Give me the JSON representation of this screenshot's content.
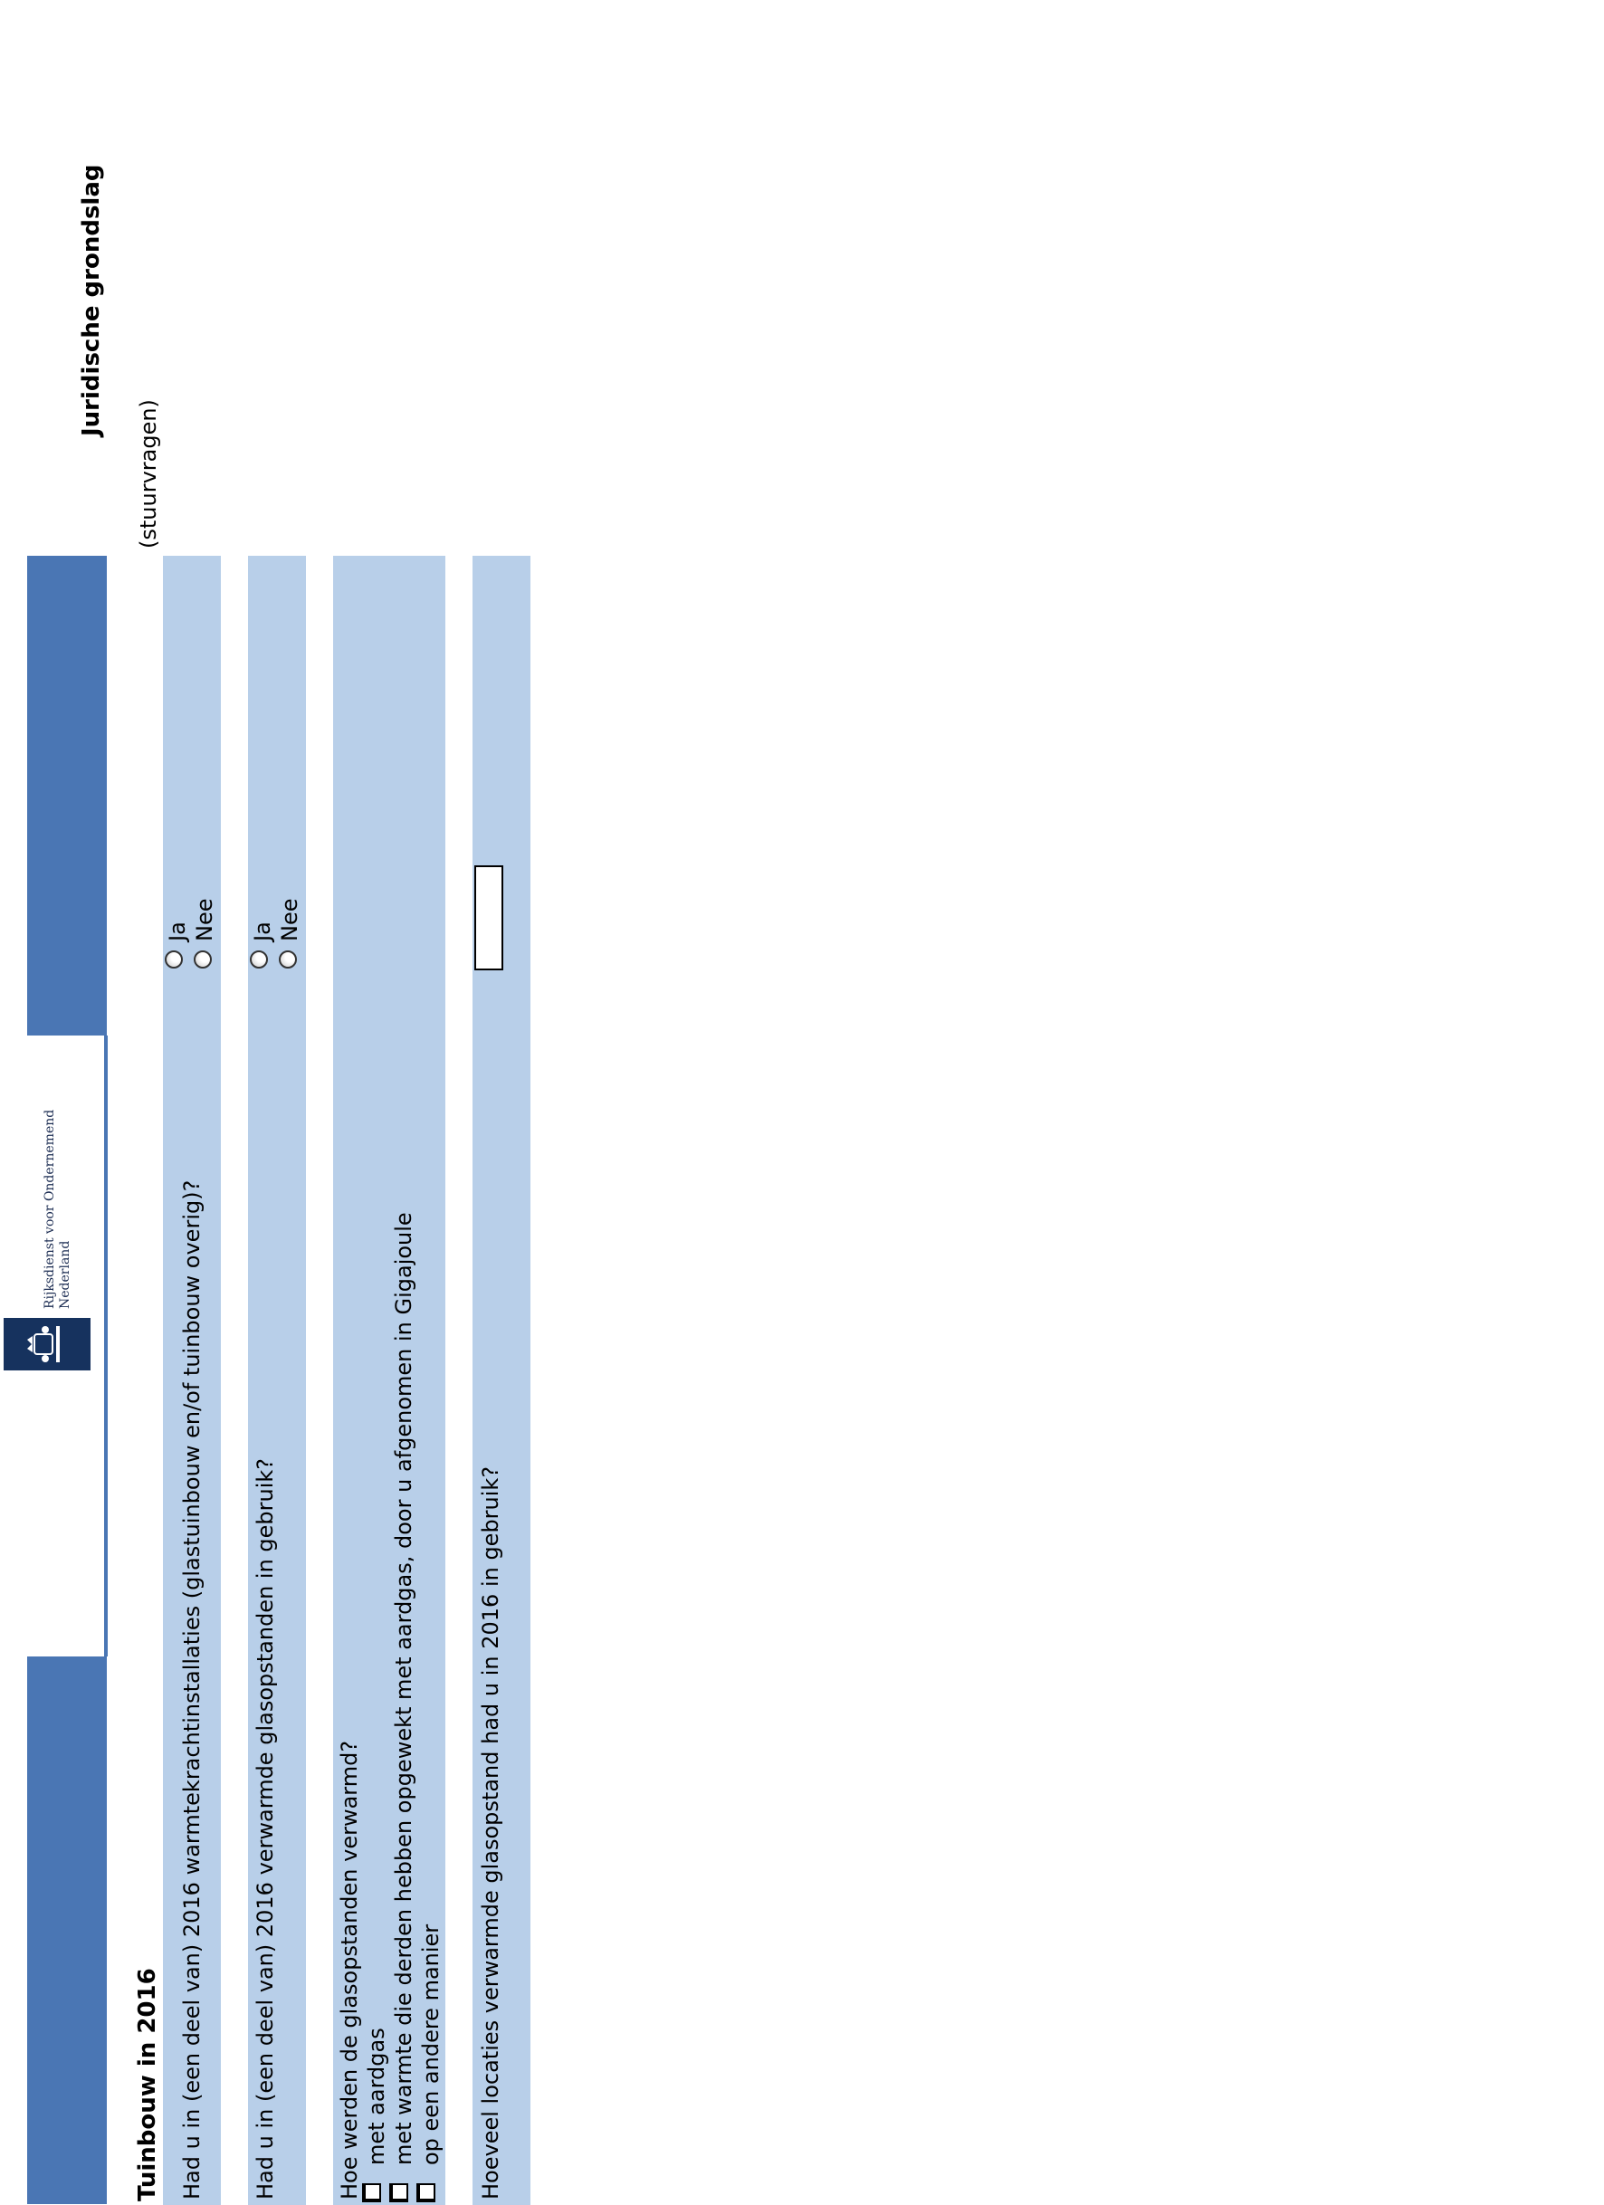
{
  "header": {
    "logo_text": "Rijksdienst voor Ondernemend\nNederland",
    "legal_title": "Juridische grondslag",
    "steering_label": "(stuurvragen)"
  },
  "section": {
    "title": "Tuinbouw in 2016"
  },
  "questions": [
    {
      "text": "Had u in (een deel van) 2016 warmtekrachtinstallaties (glastuinbouw en/of tuinbouw overig)?",
      "options": [
        "Ja",
        "Nee"
      ]
    },
    {
      "text": "Had u in (een deel van) 2016 verwarmde glasopstanden in gebruik?",
      "options": [
        "Ja",
        "Nee"
      ]
    },
    {
      "text": "Hoe werden de glasopstanden verwarmd?",
      "options": [
        "met aardgas",
        "met warmte die derden hebben opgewekt met aardgas, door u afgenomen in Gigajoule",
        "op een andere manier"
      ]
    },
    {
      "text": "Hoeveel locaties verwarmde glasopstand had u in 2016 in gebruik?",
      "value": ""
    }
  ],
  "colors": {
    "header_band": "#4a76b4",
    "row_background": "#b8cfe9",
    "logo_background": "#16325e"
  }
}
